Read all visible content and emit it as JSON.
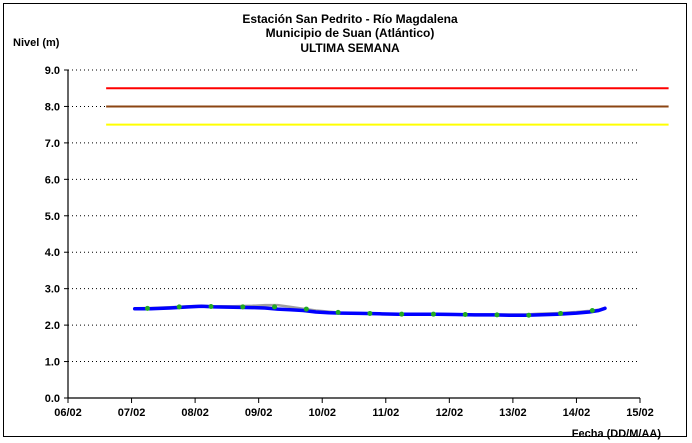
{
  "chart_data": {
    "type": "line",
    "title_lines": [
      "Estación San Pedrito - Río Magdalena",
      "Municipio de Suan (Atlántico)",
      "ULTIMA SEMANA"
    ],
    "ylabel": "Nivel (m)",
    "xlabel": "Fecha (DD/M/AA)",
    "ylim": [
      0,
      9
    ],
    "xlim": [
      "06/02",
      "15/02"
    ],
    "y_ticks": [
      "0.0",
      "1.0",
      "2.0",
      "3.0",
      "4.0",
      "5.0",
      "6.0",
      "7.0",
      "8.0",
      "9.0"
    ],
    "x_ticks": [
      "06/02",
      "07/02",
      "08/02",
      "09/02",
      "10/02",
      "11/02",
      "12/02",
      "13/02",
      "14/02",
      "15/02"
    ],
    "grid": "horizontal",
    "threshold_lines": [
      {
        "value": 8.5,
        "color": "#ff0000",
        "x_start": 6.6,
        "x_end": 15.45
      },
      {
        "value": 8.0,
        "color": "#8b4513",
        "x_start": 6.6,
        "x_end": 15.45
      },
      {
        "value": 7.5,
        "color": "#ffff00",
        "x_start": 6.6,
        "x_end": 15.45
      }
    ],
    "series": [
      {
        "color": "#0000ff",
        "style": "line",
        "x": [
          7.05,
          7.3,
          7.6,
          7.9,
          8.1,
          8.3,
          8.6,
          8.9,
          9.1,
          9.3,
          9.5,
          9.7,
          9.9,
          10.1,
          10.3,
          10.6,
          10.9,
          11.2,
          11.5,
          11.8,
          12.1,
          12.4,
          12.7,
          13.0,
          13.2,
          13.4,
          13.7,
          14.0,
          14.2,
          14.35,
          14.45
        ],
        "y": [
          2.45,
          2.45,
          2.47,
          2.5,
          2.52,
          2.5,
          2.49,
          2.48,
          2.47,
          2.44,
          2.42,
          2.4,
          2.36,
          2.34,
          2.33,
          2.32,
          2.31,
          2.3,
          2.3,
          2.3,
          2.29,
          2.28,
          2.28,
          2.27,
          2.27,
          2.28,
          2.3,
          2.33,
          2.36,
          2.4,
          2.46
        ]
      },
      {
        "color": "#a0a0a0",
        "style": "line",
        "x": [
          7.05,
          7.3,
          7.6,
          7.9,
          8.1,
          8.3,
          8.6,
          8.9,
          9.1,
          9.3,
          9.5,
          9.7,
          9.9,
          10.1,
          10.3,
          10.6,
          10.9,
          11.2,
          11.5,
          11.8,
          12.1,
          12.4,
          12.7,
          13.0,
          13.2,
          13.4,
          13.7,
          14.0,
          14.2,
          14.35,
          14.45
        ],
        "y": [
          2.46,
          2.47,
          2.49,
          2.52,
          2.53,
          2.52,
          2.52,
          2.53,
          2.55,
          2.55,
          2.5,
          2.45,
          2.4,
          2.37,
          2.34,
          2.32,
          2.31,
          2.31,
          2.31,
          2.31,
          2.3,
          2.29,
          2.29,
          2.29,
          2.29,
          2.31,
          2.33,
          2.36,
          2.39,
          2.42,
          2.47
        ]
      },
      {
        "color": "#22aa22",
        "style": "markers",
        "x": [
          7.25,
          7.75,
          8.25,
          8.75,
          9.25,
          9.75,
          10.25,
          10.75,
          11.25,
          11.75,
          12.25,
          12.75,
          13.25,
          13.75,
          14.25
        ],
        "y": [
          2.46,
          2.5,
          2.51,
          2.5,
          2.5,
          2.44,
          2.35,
          2.32,
          2.3,
          2.3,
          2.29,
          2.28,
          2.27,
          2.32,
          2.4
        ]
      }
    ]
  }
}
